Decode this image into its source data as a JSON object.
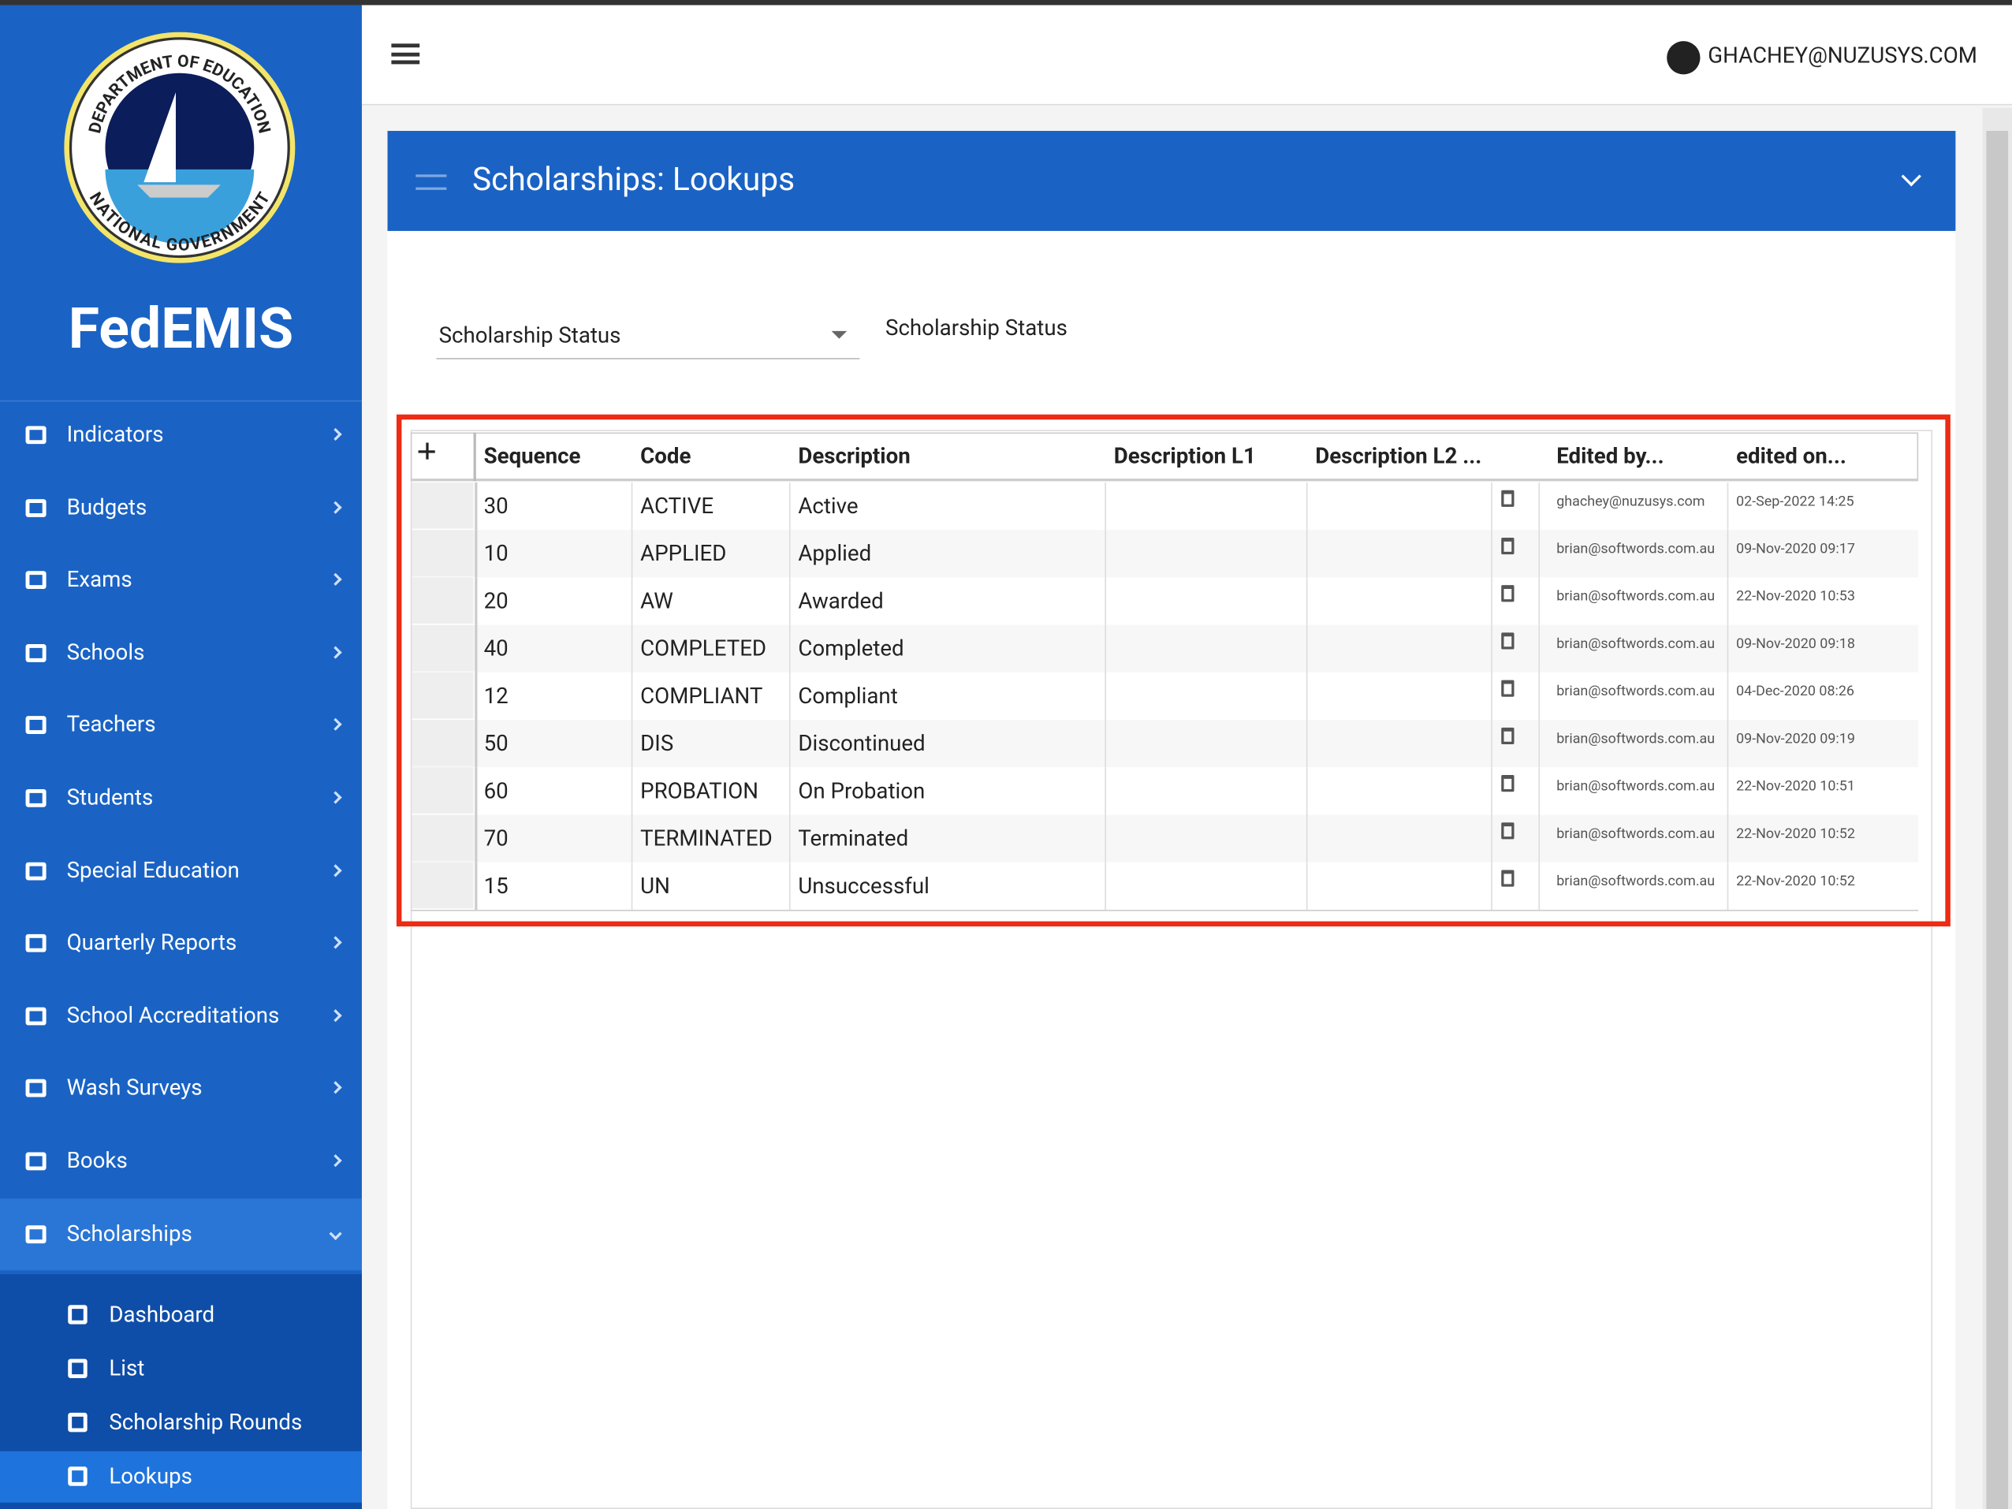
{
  "sidebar": {
    "logo": {
      "top_text": "DEPARTMENT OF EDUCATION",
      "bottom_text": "NATIONAL GOVERNMENT"
    },
    "app_name": "FedEMIS",
    "menu": [
      "Indicators",
      "Budgets",
      "Exams",
      "Schools",
      "Teachers",
      "Students",
      "Special Education",
      "Quarterly Reports",
      "School Accreditations",
      "Wash Surveys",
      "Books",
      "Scholarships"
    ],
    "submenu": [
      "Dashboard",
      "List",
      "Scholarship Rounds",
      "Lookups"
    ]
  },
  "header": {
    "user": "GHACHEY@NUZUSYS.COM"
  },
  "panel": {
    "title": "Scholarships: Lookups",
    "selector": "Scholarship Status",
    "selected_label": "Scholarship Status"
  },
  "table": {
    "columns": [
      "Sequence",
      "Code",
      "Description",
      "Description L1",
      "Description L2 ...",
      "Edited by...",
      "edited on..."
    ],
    "rows": [
      [
        30,
        "ACTIVE",
        "Active",
        "ghachey@nuzusys.com",
        "02-Sep-2022 14:25"
      ],
      [
        10,
        "APPLIED",
        "Applied",
        "brian@softwords.com.au",
        "09-Nov-2020 09:17"
      ],
      [
        20,
        "AW",
        "Awarded",
        "brian@softwords.com.au",
        "22-Nov-2020 10:53"
      ],
      [
        40,
        "COMPLETED",
        "Completed",
        "brian@softwords.com.au",
        "09-Nov-2020 09:18"
      ],
      [
        12,
        "COMPLIANT",
        "Compliant",
        "brian@softwords.com.au",
        "04-Dec-2020 08:26"
      ],
      [
        50,
        "DIS",
        "Discontinued",
        "brian@softwords.com.au",
        "09-Nov-2020 09:19"
      ],
      [
        60,
        "PROBATION",
        "On Probation",
        "brian@softwords.com.au",
        "22-Nov-2020 10:51"
      ],
      [
        70,
        "TERMINATED",
        "Terminated",
        "brian@softwords.com.au",
        "22-Nov-2020 10:52"
      ],
      [
        15,
        "UN",
        "Unsuccessful",
        "brian@softwords.com.au",
        "22-Nov-2020 10:52"
      ]
    ]
  }
}
